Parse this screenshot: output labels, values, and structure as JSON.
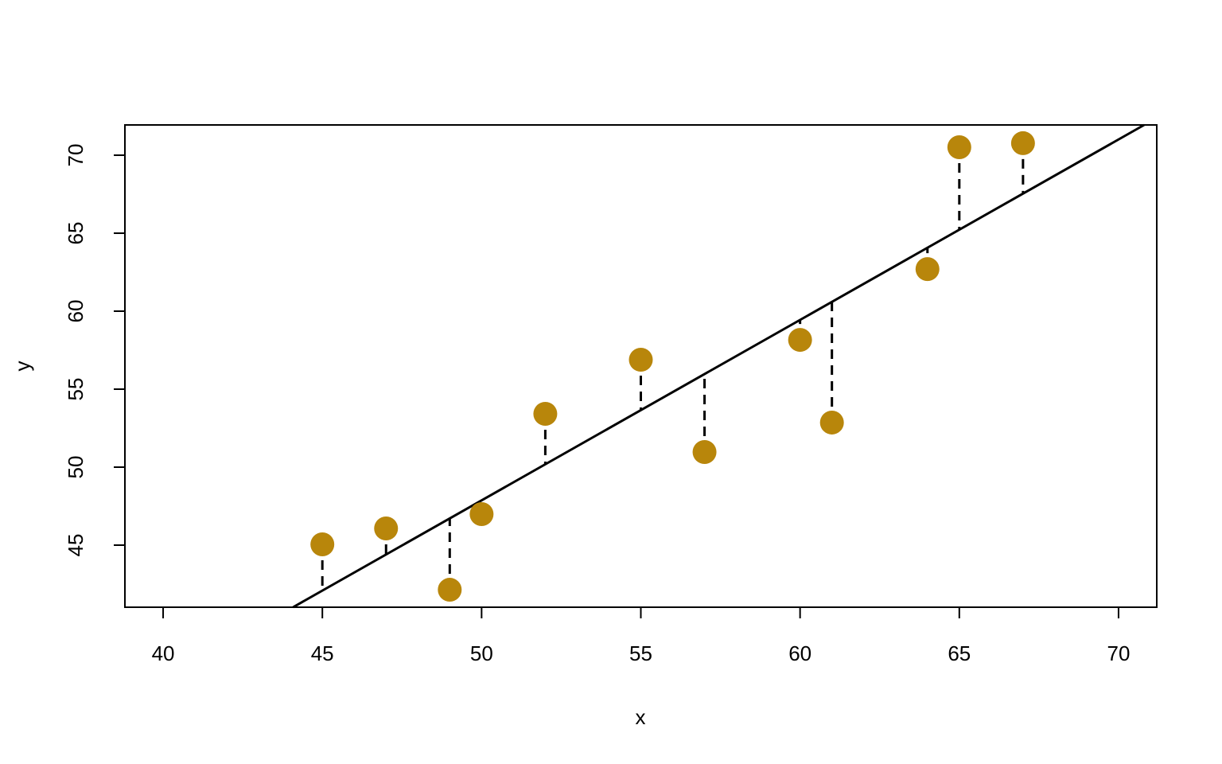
{
  "chart_data": {
    "type": "scatter",
    "xlabel": "x",
    "ylabel": "y",
    "x": [
      45,
      47,
      49,
      50,
      52,
      55,
      57,
      60,
      61,
      64,
      65,
      67
    ],
    "series": [
      {
        "color": "#b8860b",
        "values": [
          45.05,
          46.07,
          42.14,
          46.99,
          53.42,
          56.89,
          50.97,
          58.16,
          52.86,
          62.7,
          70.51,
          70.77
        ]
      }
    ],
    "fit": {
      "intercept": -9.98,
      "slope": 1.157,
      "color": "#000000"
    },
    "xlim": [
      38.8,
      71.2
    ],
    "ylim": [
      41.02,
      71.94
    ],
    "xticks": [
      40,
      45,
      50,
      55,
      60,
      65,
      70
    ],
    "yticks": [
      45,
      50,
      55,
      60,
      65,
      70
    ]
  }
}
